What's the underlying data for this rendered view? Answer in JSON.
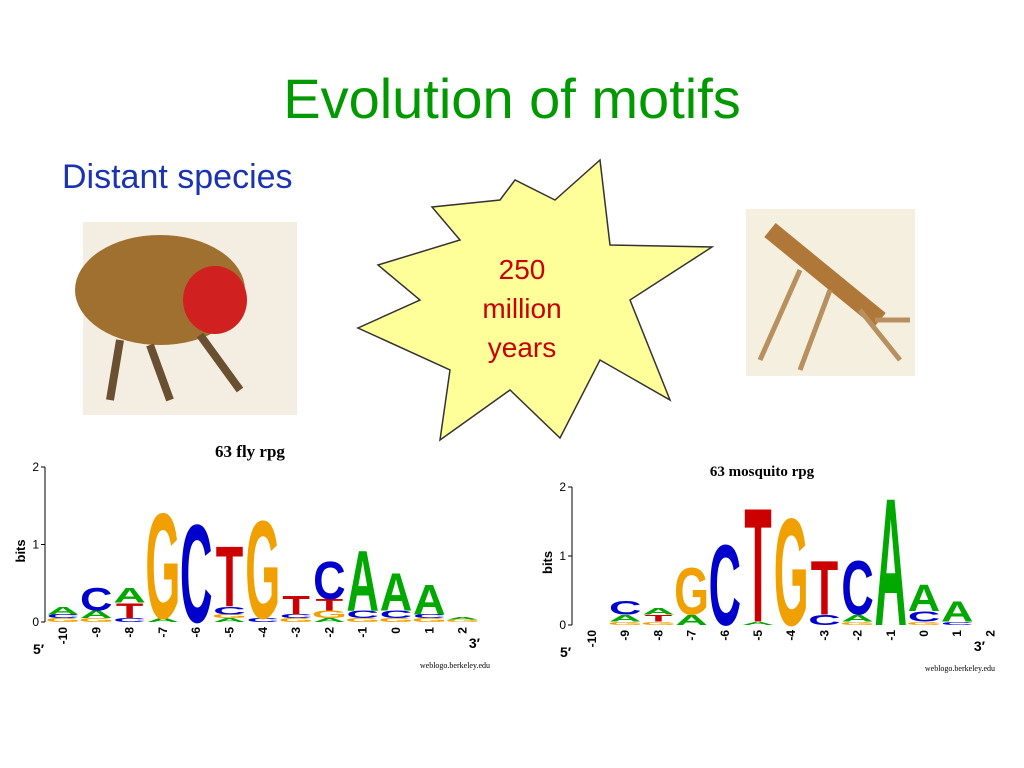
{
  "header": {
    "title": "Evolution of motifs",
    "subtitle": "Distant species"
  },
  "callout": {
    "lines": [
      "250",
      "million",
      "years"
    ]
  },
  "logos": [
    {
      "title": "63 fly rpg",
      "ylabel": "bits",
      "ylim": [
        0,
        2
      ],
      "yticks": [
        0,
        1,
        2
      ],
      "five": "5′",
      "three": "3′",
      "credit": "weblogo.berkeley.edu",
      "positions": [
        -10,
        -9,
        -8,
        -7,
        -6,
        -5,
        -4,
        -3,
        -2,
        -1,
        0,
        1,
        2
      ],
      "stacks": [
        [
          {
            "letter": "G",
            "bits": 0.05
          },
          {
            "letter": "C",
            "bits": 0.05
          },
          {
            "letter": "A",
            "bits": 0.1
          }
        ],
        [
          {
            "letter": "G",
            "bits": 0.05
          },
          {
            "letter": "A",
            "bits": 0.1
          },
          {
            "letter": "C",
            "bits": 0.3
          }
        ],
        [
          {
            "letter": "C",
            "bits": 0.05
          },
          {
            "letter": "T",
            "bits": 0.2
          },
          {
            "letter": "A",
            "bits": 0.2
          }
        ],
        [
          {
            "letter": "A",
            "bits": 0.05
          },
          {
            "letter": "G",
            "bits": 1.4
          }
        ],
        [
          {
            "letter": "C",
            "bits": 1.3
          }
        ],
        [
          {
            "letter": "A",
            "bits": 0.05
          },
          {
            "letter": "G",
            "bits": 0.05
          },
          {
            "letter": "C",
            "bits": 0.1
          },
          {
            "letter": "T",
            "bits": 0.8
          }
        ],
        [
          {
            "letter": "C",
            "bits": 0.05
          },
          {
            "letter": "G",
            "bits": 1.3
          }
        ],
        [
          {
            "letter": "G",
            "bits": 0.05
          },
          {
            "letter": "C",
            "bits": 0.05
          },
          {
            "letter": "T",
            "bits": 0.25
          }
        ],
        [
          {
            "letter": "A",
            "bits": 0.05
          },
          {
            "letter": "G",
            "bits": 0.1
          },
          {
            "letter": "T",
            "bits": 0.15
          },
          {
            "letter": "C",
            "bits": 0.5
          }
        ],
        [
          {
            "letter": "G",
            "bits": 0.05
          },
          {
            "letter": "C",
            "bits": 0.1
          },
          {
            "letter": "A",
            "bits": 0.8
          }
        ],
        [
          {
            "letter": "G",
            "bits": 0.05
          },
          {
            "letter": "C",
            "bits": 0.1
          },
          {
            "letter": "A",
            "bits": 0.5
          }
        ],
        [
          {
            "letter": "G",
            "bits": 0.05
          },
          {
            "letter": "C",
            "bits": 0.05
          },
          {
            "letter": "A",
            "bits": 0.4
          }
        ],
        [
          {
            "letter": "G",
            "bits": 0.03
          },
          {
            "letter": "A",
            "bits": 0.03
          }
        ]
      ]
    },
    {
      "title": "63 mosquito rpg",
      "ylabel": "bits",
      "ylim": [
        0,
        2
      ],
      "yticks": [
        0,
        1,
        2
      ],
      "five": "5′",
      "three": "3′",
      "credit": "weblogo.berkeley.edu",
      "positions": [
        -10,
        -9,
        -8,
        -7,
        -6,
        -5,
        -4,
        -3,
        -2,
        -1,
        0,
        1,
        2
      ],
      "stacks": [
        [],
        [
          {
            "letter": "G",
            "bits": 0.05
          },
          {
            "letter": "A",
            "bits": 0.1
          },
          {
            "letter": "C",
            "bits": 0.2
          }
        ],
        [
          {
            "letter": "G",
            "bits": 0.05
          },
          {
            "letter": "T",
            "bits": 0.1
          },
          {
            "letter": "A",
            "bits": 0.1
          }
        ],
        [
          {
            "letter": "A",
            "bits": 0.15
          },
          {
            "letter": "G",
            "bits": 0.7
          }
        ],
        [
          {
            "letter": "C",
            "bits": 1.2
          }
        ],
        [
          {
            "letter": "A",
            "bits": 0.05
          },
          {
            "letter": "T",
            "bits": 1.7
          }
        ],
        [
          {
            "letter": "G",
            "bits": 1.6
          }
        ],
        [
          {
            "letter": "C",
            "bits": 0.15
          },
          {
            "letter": "T",
            "bits": 0.8
          }
        ],
        [
          {
            "letter": "G",
            "bits": 0.05
          },
          {
            "letter": "A",
            "bits": 0.1
          },
          {
            "letter": "C",
            "bits": 0.8
          }
        ],
        [
          {
            "letter": "A",
            "bits": 1.9
          }
        ],
        [
          {
            "letter": "G",
            "bits": 0.05
          },
          {
            "letter": "C",
            "bits": 0.15
          },
          {
            "letter": "A",
            "bits": 0.4
          }
        ],
        [
          {
            "letter": "C",
            "bits": 0.05
          },
          {
            "letter": "A",
            "bits": 0.3
          }
        ],
        []
      ]
    }
  ]
}
